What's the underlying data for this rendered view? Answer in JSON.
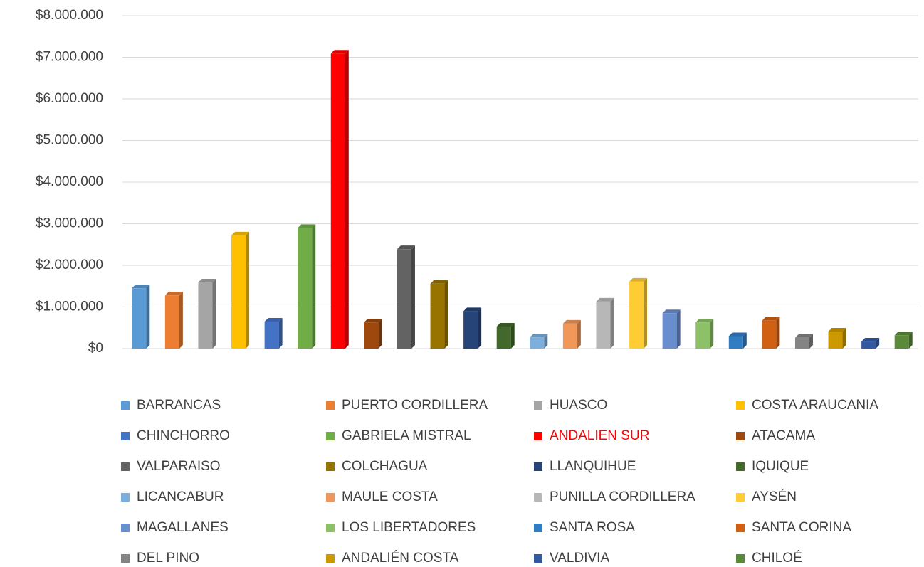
{
  "chart_data": {
    "type": "bar",
    "ylim": [
      0,
      8000000
    ],
    "yticks": [
      {
        "value": 0,
        "label": "$0"
      },
      {
        "value": 1000000,
        "label": "$1.000.000"
      },
      {
        "value": 2000000,
        "label": "$2.000.000"
      },
      {
        "value": 3000000,
        "label": "$3.000.000"
      },
      {
        "value": 4000000,
        "label": "$4.000.000"
      },
      {
        "value": 5000000,
        "label": "$5.000.000"
      },
      {
        "value": 6000000,
        "label": "$6.000.000"
      },
      {
        "value": 7000000,
        "label": "$7.000.000"
      },
      {
        "value": 8000000,
        "label": "$8.000.000"
      }
    ],
    "grid": true,
    "legend": "bottom",
    "series": [
      {
        "name": "BARRANCAS",
        "color": "#5b9bd5",
        "values": [
          1450000
        ]
      },
      {
        "name": "PUERTO CORDILLERA",
        "color": "#ed7d31",
        "values": [
          1280000
        ]
      },
      {
        "name": "HUASCO",
        "color": "#a5a5a5",
        "values": [
          1590000
        ]
      },
      {
        "name": "COSTA ARAUCANIA",
        "color": "#ffc000",
        "values": [
          2720000
        ]
      },
      {
        "name": "CHINCHORRO",
        "color": "#4472c4",
        "values": [
          650000
        ]
      },
      {
        "name": "GABRIELA MISTRAL",
        "color": "#70ad47",
        "values": [
          2900000
        ]
      },
      {
        "name": "ANDALIEN SUR",
        "color": "#ff0000",
        "values": [
          7090000
        ],
        "legend_color": "#ff0000"
      },
      {
        "name": "ATACAMA",
        "color": "#9e480e",
        "values": [
          630000
        ]
      },
      {
        "name": "VALPARAISO",
        "color": "#636363",
        "values": [
          2390000
        ]
      },
      {
        "name": "COLCHAGUA",
        "color": "#997300",
        "values": [
          1560000
        ]
      },
      {
        "name": "LLANQUIHUE",
        "color": "#264478",
        "values": [
          900000
        ]
      },
      {
        "name": "IQUIQUE",
        "color": "#43682b",
        "values": [
          530000
        ]
      },
      {
        "name": "LICANCABUR",
        "color": "#7cafdd",
        "values": [
          270000
        ]
      },
      {
        "name": "MAULE COSTA",
        "color": "#f1975a",
        "values": [
          600000
        ]
      },
      {
        "name": "PUNILLA CORDILLERA",
        "color": "#b7b7b7",
        "values": [
          1130000
        ]
      },
      {
        "name": "AYSÉN",
        "color": "#ffcd33",
        "values": [
          1610000
        ]
      },
      {
        "name": "MAGALLANES",
        "color": "#698ed0",
        "values": [
          850000
        ]
      },
      {
        "name": "LOS LIBERTADORES",
        "color": "#8cc168",
        "values": [
          630000
        ]
      },
      {
        "name": "SANTA ROSA",
        "color": "#327dc2",
        "values": [
          300000
        ]
      },
      {
        "name": "SANTA CORINA",
        "color": "#d26012",
        "values": [
          670000
        ]
      },
      {
        "name": "DEL PINO",
        "color": "#848484",
        "values": [
          260000
        ]
      },
      {
        "name": "ANDALIÉN COSTA",
        "color": "#cc9a00",
        "values": [
          410000
        ]
      },
      {
        "name": "VALDIVIA",
        "color": "#335aa1",
        "values": [
          170000
        ]
      },
      {
        "name": "CHILOÉ",
        "color": "#5a8a39",
        "values": [
          320000
        ]
      }
    ]
  }
}
